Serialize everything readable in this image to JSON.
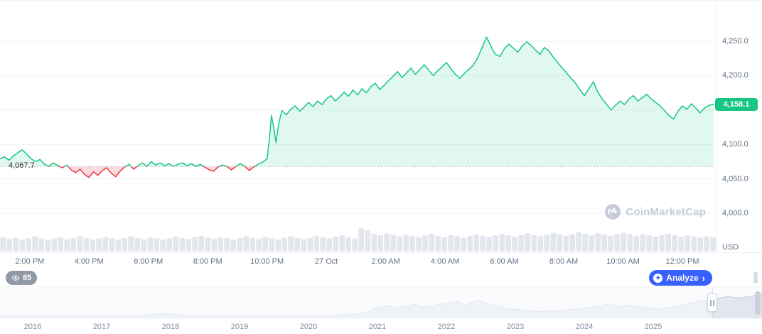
{
  "colors": {
    "green": "#16c784",
    "red": "#ea3943",
    "blue": "#3861fb",
    "grid": "#eff2f5",
    "axis_text": "#616e85",
    "volume_bar": "#e3e6ec",
    "badge_green": "#16c784"
  },
  "labels": {
    "open_price": "4,067.7",
    "current_price": "4,158.1",
    "currency": "USD"
  },
  "toolbar": {
    "watchers_count": "85",
    "analyze_label": "Analyze",
    "analyze_chevron": "›"
  },
  "watermark": {
    "text": "CoinMarketCap"
  },
  "chart_data": {
    "type": "line",
    "title": "",
    "xlabel": "",
    "ylabel": "USD",
    "xlim": [
      0,
      24.15
    ],
    "ylim": [
      3942,
      4309
    ],
    "open_price": 4067.7,
    "last_price": 4158.1,
    "grid_values": [
      4000,
      4050,
      4100,
      4150,
      4200,
      4250
    ],
    "y_ticks": [
      {
        "value": 4250,
        "label": "4,250.0"
      },
      {
        "value": 4200,
        "label": "4,200.0"
      },
      {
        "value": 4100,
        "label": "4,100.0"
      },
      {
        "value": 4050,
        "label": "4,050.0"
      },
      {
        "value": 4000,
        "label": "4,000.0"
      }
    ],
    "x_ticks": [
      {
        "h": 1,
        "label": "2:00 PM"
      },
      {
        "h": 3,
        "label": "4:00 PM"
      },
      {
        "h": 5,
        "label": "6:00 PM"
      },
      {
        "h": 7,
        "label": "8:00 PM"
      },
      {
        "h": 9,
        "label": "10:00 PM"
      },
      {
        "h": 11,
        "label": "27 Oct"
      },
      {
        "h": 13,
        "label": "2:00 AM"
      },
      {
        "h": 15,
        "label": "4:00 AM"
      },
      {
        "h": 17,
        "label": "6:00 AM"
      },
      {
        "h": 19,
        "label": "8:00 AM"
      },
      {
        "h": 21,
        "label": "10:00 AM"
      },
      {
        "h": 23,
        "label": "12:00 PM"
      }
    ],
    "series": [
      {
        "name": "price",
        "points": [
          [
            0,
            4079
          ],
          [
            0.15,
            4082
          ],
          [
            0.3,
            4077
          ],
          [
            0.45,
            4083
          ],
          [
            0.6,
            4088
          ],
          [
            0.75,
            4092
          ],
          [
            0.9,
            4086
          ],
          [
            1.05,
            4079
          ],
          [
            1.2,
            4075
          ],
          [
            1.35,
            4078
          ],
          [
            1.5,
            4071
          ],
          [
            1.65,
            4068
          ],
          [
            1.8,
            4073
          ],
          [
            1.95,
            4069
          ],
          [
            2.1,
            4066
          ],
          [
            2.25,
            4070
          ],
          [
            2.4,
            4063
          ],
          [
            2.55,
            4059
          ],
          [
            2.7,
            4064
          ],
          [
            2.85,
            4056
          ],
          [
            3,
            4052
          ],
          [
            3.15,
            4060
          ],
          [
            3.3,
            4055
          ],
          [
            3.45,
            4062
          ],
          [
            3.6,
            4066
          ],
          [
            3.75,
            4058
          ],
          [
            3.9,
            4053
          ],
          [
            4.05,
            4061
          ],
          [
            4.2,
            4067
          ],
          [
            4.35,
            4071
          ],
          [
            4.5,
            4064
          ],
          [
            4.65,
            4069
          ],
          [
            4.8,
            4073
          ],
          [
            4.95,
            4068
          ],
          [
            5.1,
            4075
          ],
          [
            5.25,
            4070
          ],
          [
            5.4,
            4073
          ],
          [
            5.55,
            4069
          ],
          [
            5.7,
            4072
          ],
          [
            5.85,
            4068
          ],
          [
            6,
            4071
          ],
          [
            6.15,
            4073
          ],
          [
            6.3,
            4069
          ],
          [
            6.45,
            4072
          ],
          [
            6.6,
            4068
          ],
          [
            6.75,
            4071
          ],
          [
            6.9,
            4067
          ],
          [
            7.05,
            4063
          ],
          [
            7.2,
            4061
          ],
          [
            7.35,
            4067
          ],
          [
            7.5,
            4070
          ],
          [
            7.65,
            4068
          ],
          [
            7.8,
            4063
          ],
          [
            7.95,
            4068
          ],
          [
            8.1,
            4072
          ],
          [
            8.25,
            4068
          ],
          [
            8.4,
            4062
          ],
          [
            8.55,
            4067
          ],
          [
            8.7,
            4071
          ],
          [
            8.85,
            4074
          ],
          [
            9,
            4079
          ],
          [
            9.08,
            4108
          ],
          [
            9.15,
            4142
          ],
          [
            9.22,
            4126
          ],
          [
            9.3,
            4103
          ],
          [
            9.4,
            4131
          ],
          [
            9.5,
            4149
          ],
          [
            9.65,
            4143
          ],
          [
            9.8,
            4151
          ],
          [
            9.95,
            4156
          ],
          [
            10.1,
            4148
          ],
          [
            10.25,
            4154
          ],
          [
            10.4,
            4161
          ],
          [
            10.55,
            4155
          ],
          [
            10.7,
            4163
          ],
          [
            10.85,
            4158
          ],
          [
            11,
            4166
          ],
          [
            11.15,
            4171
          ],
          [
            11.3,
            4163
          ],
          [
            11.45,
            4169
          ],
          [
            11.6,
            4176
          ],
          [
            11.75,
            4170
          ],
          [
            11.9,
            4179
          ],
          [
            12.05,
            4172
          ],
          [
            12.2,
            4181
          ],
          [
            12.35,
            4175
          ],
          [
            12.5,
            4184
          ],
          [
            12.65,
            4189
          ],
          [
            12.8,
            4180
          ],
          [
            12.95,
            4186
          ],
          [
            13.1,
            4193
          ],
          [
            13.25,
            4199
          ],
          [
            13.4,
            4206
          ],
          [
            13.55,
            4197
          ],
          [
            13.7,
            4204
          ],
          [
            13.85,
            4211
          ],
          [
            14,
            4202
          ],
          [
            14.15,
            4209
          ],
          [
            14.3,
            4216
          ],
          [
            14.45,
            4208
          ],
          [
            14.6,
            4200
          ],
          [
            14.75,
            4207
          ],
          [
            14.9,
            4213
          ],
          [
            15.05,
            4219
          ],
          [
            15.2,
            4210
          ],
          [
            15.35,
            4202
          ],
          [
            15.5,
            4196
          ],
          [
            15.65,
            4203
          ],
          [
            15.8,
            4209
          ],
          [
            15.95,
            4215
          ],
          [
            16.1,
            4226
          ],
          [
            16.25,
            4241
          ],
          [
            16.4,
            4256
          ],
          [
            16.5,
            4247
          ],
          [
            16.6,
            4238
          ],
          [
            16.7,
            4231
          ],
          [
            16.85,
            4228
          ],
          [
            17,
            4239
          ],
          [
            17.15,
            4246
          ],
          [
            17.3,
            4240
          ],
          [
            17.45,
            4234
          ],
          [
            17.6,
            4243
          ],
          [
            17.75,
            4249
          ],
          [
            17.9,
            4244
          ],
          [
            18.05,
            4237
          ],
          [
            18.2,
            4231
          ],
          [
            18.35,
            4241
          ],
          [
            18.5,
            4236
          ],
          [
            18.65,
            4227
          ],
          [
            18.8,
            4219
          ],
          [
            18.95,
            4211
          ],
          [
            19.1,
            4204
          ],
          [
            19.25,
            4196
          ],
          [
            19.4,
            4189
          ],
          [
            19.55,
            4179
          ],
          [
            19.7,
            4171
          ],
          [
            19.85,
            4181
          ],
          [
            20,
            4191
          ],
          [
            20.15,
            4176
          ],
          [
            20.3,
            4166
          ],
          [
            20.45,
            4158
          ],
          [
            20.6,
            4150
          ],
          [
            20.75,
            4157
          ],
          [
            20.9,
            4163
          ],
          [
            21.05,
            4158
          ],
          [
            21.2,
            4166
          ],
          [
            21.35,
            4171
          ],
          [
            21.5,
            4163
          ],
          [
            21.65,
            4168
          ],
          [
            21.8,
            4173
          ],
          [
            21.95,
            4166
          ],
          [
            22.1,
            4161
          ],
          [
            22.25,
            4156
          ],
          [
            22.4,
            4149
          ],
          [
            22.55,
            4142
          ],
          [
            22.7,
            4137
          ],
          [
            22.85,
            4148
          ],
          [
            23,
            4156
          ],
          [
            23.15,
            4151
          ],
          [
            23.3,
            4159
          ],
          [
            23.45,
            4153
          ],
          [
            23.6,
            4146
          ],
          [
            23.75,
            4153
          ],
          [
            23.9,
            4157
          ],
          [
            24.05,
            4158.1
          ]
        ]
      }
    ],
    "volume_bars": [
      0.55,
      0.48,
      0.52,
      0.45,
      0.5,
      0.58,
      0.5,
      0.44,
      0.5,
      0.55,
      0.47,
      0.52,
      0.6,
      0.52,
      0.46,
      0.5,
      0.56,
      0.5,
      0.45,
      0.52,
      0.58,
      0.52,
      0.47,
      0.54,
      0.5,
      0.45,
      0.5,
      0.57,
      0.52,
      0.48,
      0.55,
      0.6,
      0.53,
      0.48,
      0.54,
      0.5,
      0.46,
      0.52,
      0.58,
      0.52,
      0.48,
      0.55,
      0.5,
      0.46,
      0.53,
      0.58,
      0.52,
      0.47,
      0.53,
      0.6,
      0.55,
      0.5,
      0.57,
      0.62,
      0.55,
      0.5,
      0.9,
      0.82,
      0.68,
      0.62,
      0.7,
      0.64,
      0.58,
      0.65,
      0.6,
      0.55,
      0.62,
      0.68,
      0.6,
      0.55,
      0.63,
      0.58,
      0.53,
      0.6,
      0.66,
      0.6,
      0.55,
      0.62,
      0.68,
      0.62,
      0.57,
      0.64,
      0.7,
      0.63,
      0.58,
      0.65,
      0.72,
      0.66,
      0.6,
      0.67,
      0.74,
      0.68,
      0.62,
      0.7,
      0.65,
      0.6,
      0.66,
      0.72,
      0.66,
      0.6,
      0.67,
      0.62,
      0.57,
      0.63,
      0.68,
      0.62,
      0.56,
      0.62,
      0.58,
      0.53,
      0.59,
      0.55
    ],
    "history": {
      "years": [
        "2016",
        "2017",
        "2018",
        "2019",
        "2020",
        "2021",
        "2022",
        "2023",
        "2024",
        "2025"
      ],
      "selection_start_frac": 0.935,
      "points": [
        [
          0,
          0.03
        ],
        [
          0.03,
          0.04
        ],
        [
          0.06,
          0.03
        ],
        [
          0.09,
          0.04
        ],
        [
          0.12,
          0.03
        ],
        [
          0.15,
          0.05
        ],
        [
          0.18,
          0.06
        ],
        [
          0.2,
          0.1
        ],
        [
          0.215,
          0.16
        ],
        [
          0.23,
          0.1
        ],
        [
          0.25,
          0.06
        ],
        [
          0.28,
          0.05
        ],
        [
          0.31,
          0.04
        ],
        [
          0.34,
          0.05
        ],
        [
          0.37,
          0.05
        ],
        [
          0.4,
          0.06
        ],
        [
          0.43,
          0.07
        ],
        [
          0.46,
          0.1
        ],
        [
          0.48,
          0.2
        ],
        [
          0.495,
          0.38
        ],
        [
          0.51,
          0.48
        ],
        [
          0.52,
          0.34
        ],
        [
          0.53,
          0.44
        ],
        [
          0.545,
          0.52
        ],
        [
          0.555,
          0.4
        ],
        [
          0.57,
          0.47
        ],
        [
          0.585,
          0.56
        ],
        [
          0.6,
          0.65
        ],
        [
          0.61,
          0.5
        ],
        [
          0.62,
          0.6
        ],
        [
          0.63,
          0.68
        ],
        [
          0.64,
          0.55
        ],
        [
          0.655,
          0.42
        ],
        [
          0.67,
          0.33
        ],
        [
          0.69,
          0.27
        ],
        [
          0.71,
          0.22
        ],
        [
          0.73,
          0.26
        ],
        [
          0.75,
          0.3
        ],
        [
          0.77,
          0.38
        ],
        [
          0.79,
          0.46
        ],
        [
          0.8,
          0.55
        ],
        [
          0.81,
          0.42
        ],
        [
          0.82,
          0.5
        ],
        [
          0.835,
          0.45
        ],
        [
          0.85,
          0.38
        ],
        [
          0.865,
          0.33
        ],
        [
          0.88,
          0.4
        ],
        [
          0.895,
          0.5
        ],
        [
          0.91,
          0.6
        ],
        [
          0.925,
          0.68
        ],
        [
          0.94,
          0.76
        ],
        [
          0.955,
          0.85
        ],
        [
          0.97,
          0.78
        ],
        [
          0.985,
          0.86
        ],
        [
          1,
          0.97
        ]
      ]
    }
  }
}
